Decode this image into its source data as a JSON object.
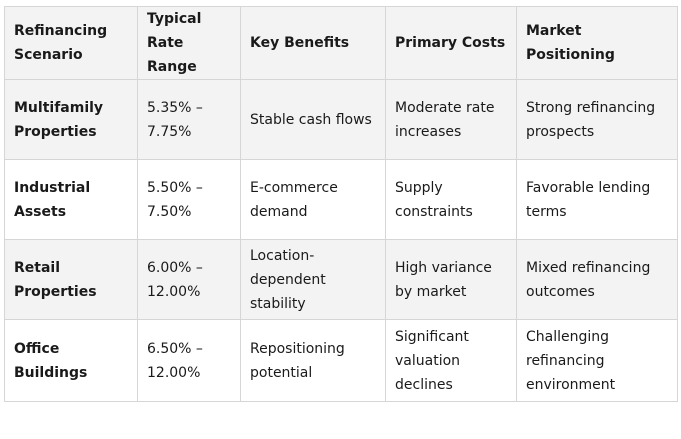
{
  "table": {
    "headers": [
      "Refinancing Scenario",
      "Typical Rate Range",
      "Key Benefits",
      "Primary Costs",
      "Market Positioning"
    ],
    "rows": [
      {
        "scenario": "Multifamily Properties",
        "rate_range": "5.35% – 7.75%",
        "benefits": "Stable cash flows",
        "costs": "Moderate rate increases",
        "positioning": "Strong refinancing prospects"
      },
      {
        "scenario": "Industrial Assets",
        "rate_range": "5.50% – 7.50%",
        "benefits": "E-commerce demand",
        "costs": "Supply constraints",
        "positioning": "Favorable lending terms"
      },
      {
        "scenario": "Retail Properties",
        "rate_range": "6.00% – 12.00%",
        "benefits": "Location-dependent stability",
        "costs": "High variance by market",
        "positioning": "Mixed refinancing outcomes"
      },
      {
        "scenario": "Office Buildings",
        "rate_range": "6.50% – 12.00%",
        "benefits": "Repositioning potential",
        "costs": "Significant valuation declines",
        "positioning": "Challenging refinancing environment"
      }
    ]
  }
}
